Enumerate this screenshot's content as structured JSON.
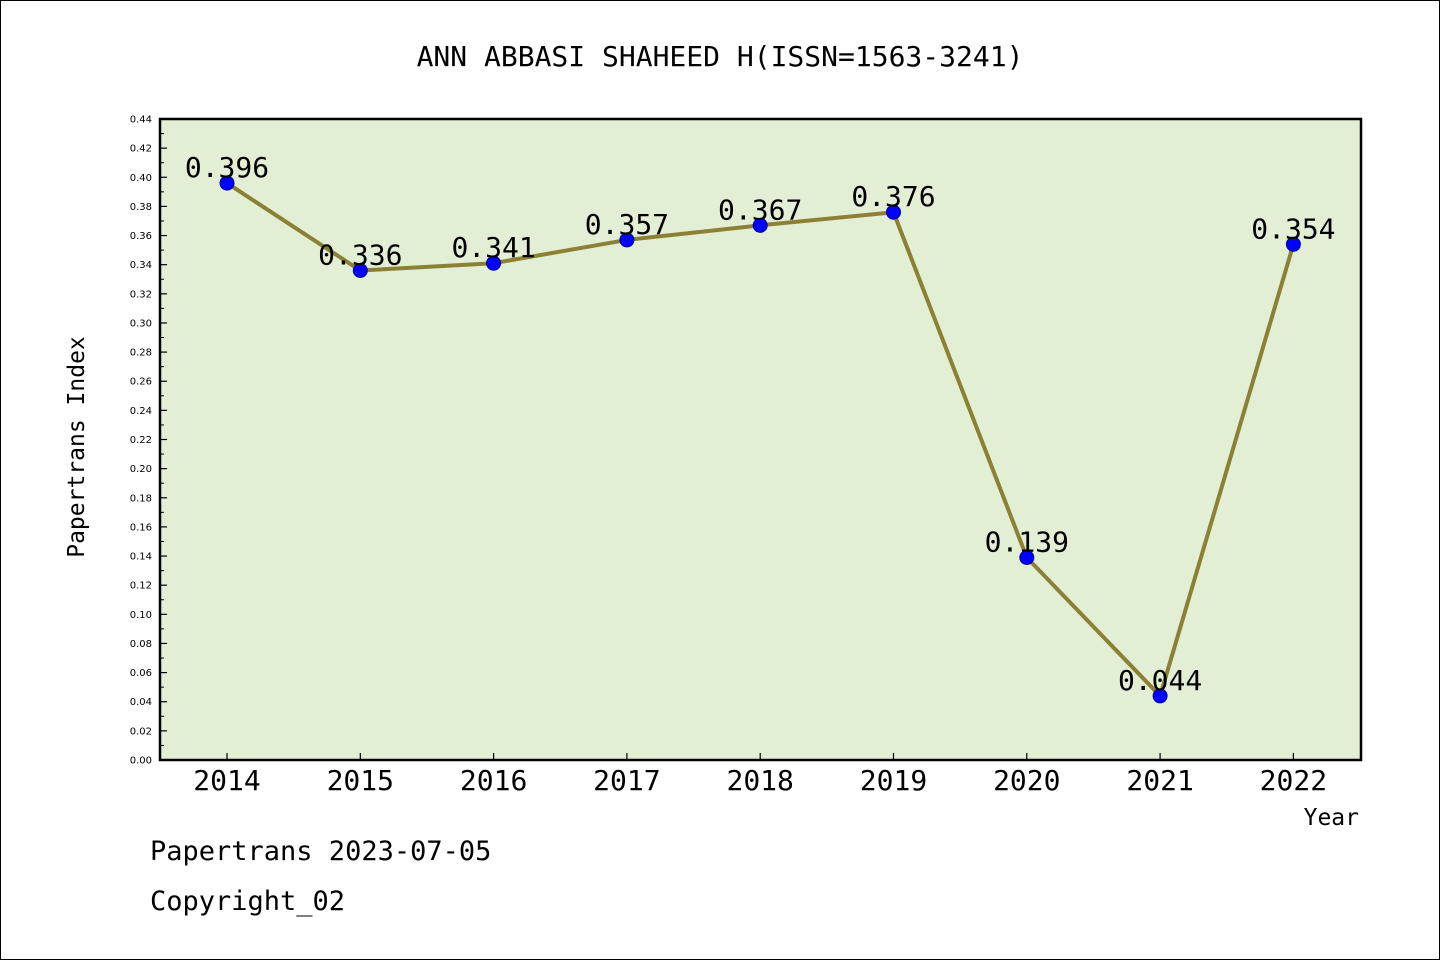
{
  "chart_data": {
    "type": "line",
    "title": "ANN ABBASI SHAHEED H(ISSN=1563-3241)",
    "xlabel": "Year",
    "ylabel": "Papertrans Index",
    "categories": [
      "2014",
      "2015",
      "2016",
      "2017",
      "2018",
      "2019",
      "2020",
      "2021",
      "2022"
    ],
    "series": [
      {
        "values": [
          0.396,
          0.336,
          0.341,
          0.357,
          0.367,
          0.376,
          0.139,
          0.044,
          0.354
        ],
        "data_labels": [
          "0.396",
          "0.336",
          "0.341",
          "0.357",
          "0.367",
          "0.376",
          "0.139",
          "0.044",
          "0.354"
        ]
      }
    ],
    "ylim": [
      0,
      0.44
    ],
    "y_ticks": [
      "0.00",
      "0.02",
      "0.04",
      "0.06",
      "0.08",
      "0.10",
      "0.12",
      "0.14",
      "0.16",
      "0.18",
      "0.20",
      "0.22",
      "0.24",
      "0.26",
      "0.28",
      "0.30",
      "0.32",
      "0.34",
      "0.36",
      "0.38",
      "0.40",
      "0.42",
      "0.44"
    ],
    "y_tick_values": [
      0,
      0.02,
      0.04,
      0.06,
      0.08,
      0.1,
      0.12,
      0.14,
      0.16,
      0.18,
      0.2,
      0.22,
      0.24,
      0.26,
      0.28,
      0.3,
      0.32,
      0.34,
      0.36,
      0.38,
      0.4,
      0.42,
      0.44
    ],
    "grid": false,
    "legend": "none",
    "colors": {
      "plot_background": "#e2efd5",
      "line": "#8b8034",
      "marker": "#0000ff"
    }
  },
  "footer": {
    "date_line": "Papertrans 2023-07-05",
    "copyright": "Copyright_02"
  }
}
